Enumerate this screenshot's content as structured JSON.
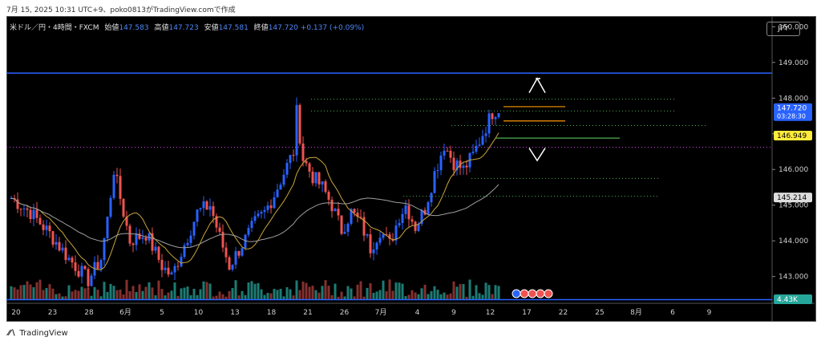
{
  "caption": "7月 15, 2025 10:31 UTC+9、poko0813がTradingView.comで作成",
  "legend": {
    "symbol": "米ドル／円・4時間・FXCM",
    "open_label": "始値",
    "open": "147.583",
    "high_label": "高値",
    "high": "147.723",
    "low_label": "安値",
    "low": "147.581",
    "close_label": "終値",
    "close": "147.720",
    "change": "+0.137 (+0.09%)"
  },
  "currency": "JPY",
  "brand": "TradingView",
  "chart_data": {
    "type": "candlestick",
    "y_range": [
      142.25,
      150.3
    ],
    "y_ticks": [
      "150.000",
      "149.000",
      "148.000",
      "147.000",
      "146.000",
      "145.000",
      "144.000",
      "143.000"
    ],
    "x_ticks": [
      "20",
      "23",
      "28",
      "6月",
      "5",
      "10",
      "13",
      "18",
      "21",
      "26",
      "7月",
      "4",
      "9",
      "12",
      "17",
      "22",
      "25",
      "8月",
      "6",
      "9"
    ],
    "price_tags": [
      {
        "value": "147.720",
        "sub": "03:28:30",
        "bg": "#2962ff",
        "fg": "#ffffff"
      },
      {
        "value": "146.949",
        "bg": "#ffeb3b",
        "fg": "#000000"
      },
      {
        "value": "145.214",
        "bg": "#dddddd",
        "fg": "#000000"
      },
      {
        "value": "4.43K",
        "bg": "#26a69a",
        "fg": "#ffffff"
      }
    ],
    "horizontal_lines": [
      {
        "value": 148.7,
        "style": "solid",
        "color": "#2962ff"
      },
      {
        "value": 147.97,
        "style": "dotted",
        "color": "#4caf50"
      },
      {
        "value": 147.64,
        "style": "dotted",
        "color": "#4caf50"
      },
      {
        "value": 147.23,
        "style": "dotted",
        "color": "#4caf50"
      },
      {
        "value": 146.62,
        "style": "dotted",
        "color": "#e040fb"
      },
      {
        "value": 145.75,
        "style": "dotted",
        "color": "#4caf50"
      },
      {
        "value": 145.25,
        "style": "dotted",
        "color": "#4caf50"
      },
      {
        "value": 142.35,
        "style": "solid",
        "color": "#2962ff"
      }
    ],
    "colors": {
      "up": "#2962ff",
      "down": "#ef5350",
      "ma_fast": "#c8a43c",
      "ma_slow": "#9e9e9e",
      "volume_up": "#26a69a",
      "volume_down": "#b2403d"
    },
    "candles_summary": {
      "path": [
        [
          0,
          145.2
        ],
        [
          6,
          144.8
        ],
        [
          12,
          144.2
        ],
        [
          18,
          143.5
        ],
        [
          24,
          142.9
        ],
        [
          28,
          143.5
        ],
        [
          30,
          144.6
        ],
        [
          32,
          146.0
        ],
        [
          34,
          145.2
        ],
        [
          37,
          144.0
        ],
        [
          42,
          144.2
        ],
        [
          47,
          143.3
        ],
        [
          50,
          143.0
        ],
        [
          54,
          143.9
        ],
        [
          58,
          144.8
        ],
        [
          62,
          145.0
        ],
        [
          65,
          144.1
        ],
        [
          68,
          143.3
        ],
        [
          72,
          143.9
        ],
        [
          76,
          144.5
        ],
        [
          79,
          144.8
        ],
        [
          82,
          145.3
        ],
        [
          85,
          145.9
        ],
        [
          88,
          146.5
        ],
        [
          89,
          147.6
        ],
        [
          91,
          146.3
        ],
        [
          94,
          145.8
        ],
        [
          97,
          145.5
        ],
        [
          100,
          145.0
        ],
        [
          103,
          144.3
        ],
        [
          106,
          144.8
        ],
        [
          109,
          144.5
        ],
        [
          112,
          143.8
        ],
        [
          115,
          144.3
        ],
        [
          118,
          143.9
        ],
        [
          121,
          144.7
        ],
        [
          123,
          145.0
        ],
        [
          126,
          144.4
        ],
        [
          129,
          144.9
        ],
        [
          132,
          145.9
        ],
        [
          135,
          146.7
        ],
        [
          138,
          146.2
        ],
        [
          141,
          146.0
        ],
        [
          144,
          146.4
        ],
        [
          147,
          147.0
        ],
        [
          150,
          147.6
        ],
        [
          152,
          147.72
        ]
      ]
    }
  }
}
